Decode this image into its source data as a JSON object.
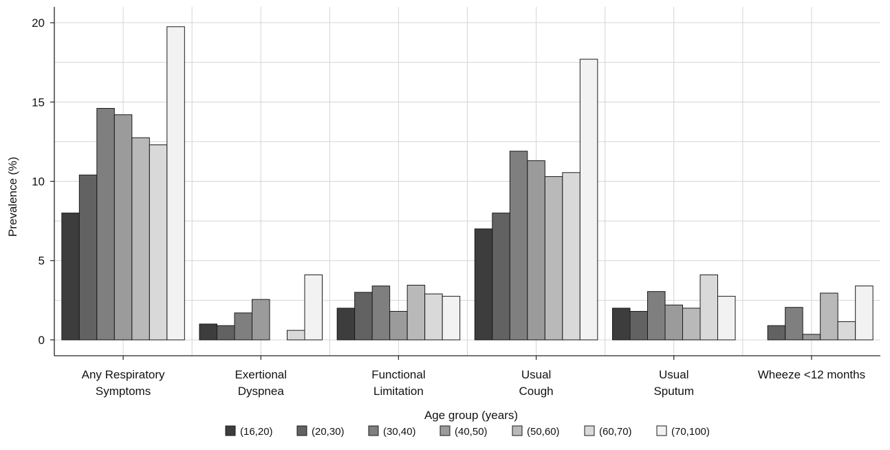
{
  "chart_data": {
    "type": "bar",
    "title": "",
    "xlabel": "Age group (years)",
    "ylabel": "Prevalence (%)",
    "ylim": [
      -1,
      21
    ],
    "yticks": [
      0,
      5,
      10,
      15,
      20
    ],
    "grid": true,
    "legend_position": "bottom",
    "categories": [
      [
        "Any Respiratory",
        "Symptoms"
      ],
      [
        "Exertional",
        "Dyspnea"
      ],
      [
        "Functional",
        "Limitation"
      ],
      [
        "Usual",
        "Cough"
      ],
      [
        "Usual",
        "Sputum"
      ],
      [
        "Wheeze <12 months"
      ]
    ],
    "series": [
      {
        "name": "(16,20)",
        "color": "#3d3d3d",
        "values": [
          8.0,
          1.0,
          2.0,
          7.0,
          2.0,
          0.0
        ]
      },
      {
        "name": "(20,30)",
        "color": "#626262",
        "values": [
          10.4,
          0.9,
          3.0,
          8.0,
          1.8,
          0.9
        ]
      },
      {
        "name": "(30,40)",
        "color": "#7f7f7f",
        "values": [
          14.6,
          1.7,
          3.4,
          11.9,
          3.05,
          2.05
        ]
      },
      {
        "name": "(40,50)",
        "color": "#9b9b9b",
        "values": [
          14.2,
          2.55,
          1.8,
          11.3,
          2.2,
          0.35
        ]
      },
      {
        "name": "(50,60)",
        "color": "#b9b9b9",
        "values": [
          12.75,
          0.0,
          3.45,
          10.3,
          2.0,
          2.95
        ]
      },
      {
        "name": "(60,70)",
        "color": "#d9d9d9",
        "values": [
          12.3,
          0.6,
          2.9,
          10.55,
          4.1,
          1.15
        ]
      },
      {
        "name": "(70,100)",
        "color": "#f2f2f2",
        "values": [
          19.75,
          4.1,
          2.75,
          17.7,
          2.75,
          3.4
        ]
      }
    ]
  }
}
